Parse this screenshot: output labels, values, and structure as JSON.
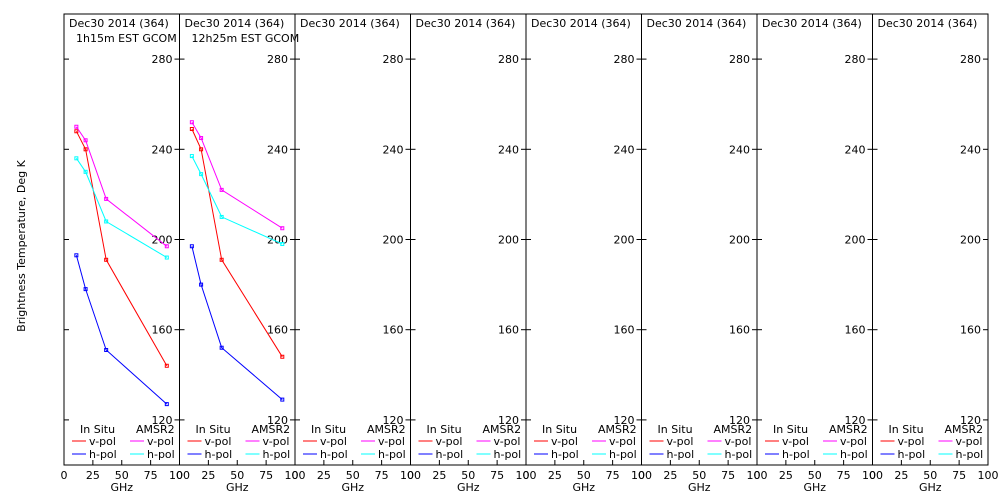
{
  "figure": {
    "ylabel": "Brightness Temperature, Deg K",
    "xlabel": "GHz",
    "x_ticks": [
      "0",
      "25",
      "50",
      "75",
      "100"
    ],
    "y_ticks": [
      "120",
      "160",
      "200",
      "240",
      "280"
    ],
    "legend": {
      "in_situ_header": "In Situ",
      "amsr2_header": "AMSR2",
      "vpol": "v-pol",
      "hpol": "h-pol"
    },
    "colors": {
      "insitu_vpol": "#ff0000",
      "insitu_hpol": "#0000ff",
      "amsr2_vpol": "#ff00ff",
      "amsr2_hpol": "#00ffff"
    }
  },
  "chart_data": [
    {
      "type": "line",
      "title": "Dec30 2014 (364)",
      "subtitle": "1h15m EST GCOM",
      "xlim": [
        0,
        100
      ],
      "ylim": [
        100,
        300
      ],
      "series": [
        {
          "name": "In Situ v-pol",
          "x": [
            10.7,
            18.7,
            36.5,
            89
          ],
          "y": [
            248,
            240,
            191,
            144
          ]
        },
        {
          "name": "In Situ h-pol",
          "x": [
            10.7,
            18.7,
            36.5,
            89
          ],
          "y": [
            193,
            178,
            151,
            127
          ]
        },
        {
          "name": "AMSR2 v-pol",
          "x": [
            10.7,
            18.7,
            36.5,
            89
          ],
          "y": [
            250,
            244,
            218,
            197
          ]
        },
        {
          "name": "AMSR2 h-pol",
          "x": [
            10.7,
            18.7,
            36.5,
            89
          ],
          "y": [
            236,
            230,
            208,
            192
          ]
        }
      ]
    },
    {
      "type": "line",
      "title": "Dec30 2014 (364)",
      "subtitle": "12h25m EST GCOM",
      "xlim": [
        0,
        100
      ],
      "ylim": [
        100,
        300
      ],
      "series": [
        {
          "name": "In Situ v-pol",
          "x": [
            10.7,
            18.7,
            36.5,
            89
          ],
          "y": [
            249,
            240,
            191,
            148
          ]
        },
        {
          "name": "In Situ h-pol",
          "x": [
            10.7,
            18.7,
            36.5,
            89
          ],
          "y": [
            197,
            180,
            152,
            129
          ]
        },
        {
          "name": "AMSR2 v-pol",
          "x": [
            10.7,
            18.7,
            36.5,
            89
          ],
          "y": [
            252,
            245,
            222,
            205
          ]
        },
        {
          "name": "AMSR2 h-pol",
          "x": [
            10.7,
            18.7,
            36.5,
            89
          ],
          "y": [
            237,
            229,
            210,
            198
          ]
        }
      ]
    },
    {
      "type": "line",
      "title": "Dec30 2014 (364)",
      "subtitle": "",
      "xlim": [
        0,
        100
      ],
      "ylim": [
        100,
        300
      ],
      "series": []
    },
    {
      "type": "line",
      "title": "Dec30 2014 (364)",
      "subtitle": "",
      "xlim": [
        0,
        100
      ],
      "ylim": [
        100,
        300
      ],
      "series": []
    },
    {
      "type": "line",
      "title": "Dec30 2014 (364)",
      "subtitle": "",
      "xlim": [
        0,
        100
      ],
      "ylim": [
        100,
        300
      ],
      "series": []
    },
    {
      "type": "line",
      "title": "Dec30 2014 (364)",
      "subtitle": "",
      "xlim": [
        0,
        100
      ],
      "ylim": [
        100,
        300
      ],
      "series": []
    },
    {
      "type": "line",
      "title": "Dec30 2014 (364)",
      "subtitle": "",
      "xlim": [
        0,
        100
      ],
      "ylim": [
        100,
        300
      ],
      "series": []
    },
    {
      "type": "line",
      "title": "Dec30 2014 (364)",
      "subtitle": "",
      "xlim": [
        0,
        100
      ],
      "ylim": [
        100,
        300
      ],
      "series": []
    }
  ]
}
